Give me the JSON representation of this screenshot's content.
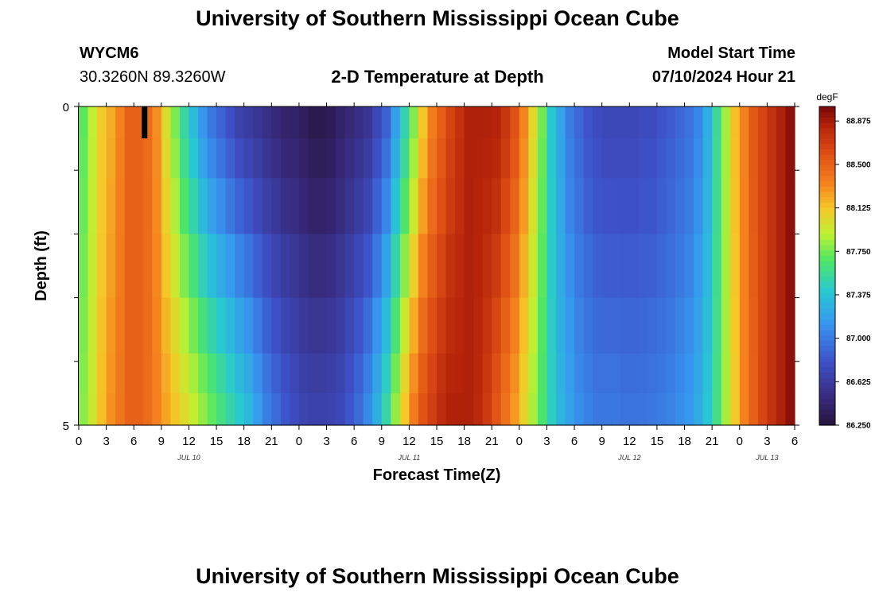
{
  "header": {
    "title": "University of Southern Mississippi Ocean Cube",
    "station_id": "WYCM6",
    "station_coords": "30.3260N  89.3260W",
    "subtitle": "2-D Temperature at Depth",
    "model_start_label": "Model Start Time",
    "model_start_value": "07/10/2024 Hour 21"
  },
  "footer": {
    "title": "University of Southern Mississippi Ocean Cube"
  },
  "chart_data": {
    "type": "heatmap",
    "title": "2-D Temperature at Depth",
    "xlabel": "Forecast Time(Z)",
    "ylabel": "Depth (ft)",
    "unit": "degF",
    "x_range_hours": [
      0,
      78
    ],
    "y_range_ft": [
      0,
      5
    ],
    "y_tick_labels": [
      "0",
      "5"
    ],
    "x_tick_labels": [
      "0",
      "3",
      "6",
      "9",
      "12",
      "15",
      "18",
      "21",
      "0",
      "3",
      "6",
      "9",
      "12",
      "15",
      "18",
      "21",
      "0",
      "3",
      "6",
      "9",
      "12",
      "15",
      "18",
      "21",
      "0",
      "3",
      "6"
    ],
    "date_labels": [
      {
        "text": "JUL 10",
        "hour": 12
      },
      {
        "text": "JUL 11",
        "hour": 36
      },
      {
        "text": "JUL 12",
        "hour": 60
      },
      {
        "text": "JUL 13",
        "hour": 75
      }
    ],
    "colorbar": {
      "label": "degF",
      "min": 86.25,
      "max": 89.0,
      "tick_values": [
        86.25,
        86.625,
        87.0,
        87.375,
        87.75,
        88.125,
        88.5,
        88.875
      ],
      "tick_labels": [
        "86.250",
        "86.625",
        "87.000",
        "87.375",
        "87.750",
        "88.125",
        "88.500",
        "88.875"
      ]
    },
    "depth_layers_ft": [
      0.25,
      0.75,
      1.5,
      2.5,
      3.5,
      4.25,
      4.75
    ],
    "profile_surface": [
      87.7,
      87.9,
      88.1,
      88.2,
      88.35,
      88.5,
      88.5,
      88.45,
      88.3,
      88.0,
      87.75,
      87.5,
      87.3,
      87.1,
      86.95,
      86.85,
      86.75,
      86.65,
      86.6,
      86.55,
      86.5,
      86.45,
      86.4,
      86.4,
      86.35,
      86.3,
      86.3,
      86.32,
      86.4,
      86.45,
      86.5,
      86.55,
      86.7,
      86.85,
      87.15,
      87.45,
      87.75,
      88.1,
      88.35,
      88.5,
      88.65,
      88.75,
      88.85,
      88.85,
      88.85,
      88.85,
      88.75,
      88.6,
      88.35,
      88.05,
      87.75,
      87.4,
      87.2,
      87.0,
      86.9,
      86.8,
      86.75,
      86.72,
      86.72,
      86.72,
      86.72,
      86.75,
      86.75,
      86.8,
      86.85,
      86.9,
      86.95,
      87.05,
      87.25,
      87.55,
      87.85,
      88.15,
      88.35,
      88.55,
      88.65,
      88.75,
      88.85,
      88.95,
      89.0
    ],
    "profile_bottom": [
      87.8,
      87.95,
      88.15,
      88.3,
      88.4,
      88.5,
      88.5,
      88.45,
      88.35,
      88.25,
      88.15,
      88.05,
      87.95,
      87.85,
      87.75,
      87.65,
      87.55,
      87.45,
      87.35,
      87.2,
      87.05,
      86.95,
      86.85,
      86.78,
      86.72,
      86.7,
      86.7,
      86.72,
      86.75,
      86.85,
      86.95,
      87.1,
      87.3,
      87.55,
      87.85,
      88.15,
      88.4,
      88.6,
      88.7,
      88.8,
      88.85,
      88.85,
      88.85,
      88.8,
      88.7,
      88.55,
      88.4,
      88.25,
      88.05,
      87.85,
      87.65,
      87.45,
      87.3,
      87.2,
      87.1,
      87.05,
      87.0,
      87.0,
      87.0,
      86.98,
      86.98,
      86.98,
      87.0,
      87.02,
      87.05,
      87.1,
      87.15,
      87.25,
      87.4,
      87.6,
      87.85,
      88.1,
      88.35,
      88.5,
      88.65,
      88.75,
      88.85,
      88.95,
      89.0
    ],
    "marker": {
      "hour": 7,
      "depth_top_ft": 0,
      "depth_bottom_ft": 0.5,
      "color": "#000000"
    }
  }
}
